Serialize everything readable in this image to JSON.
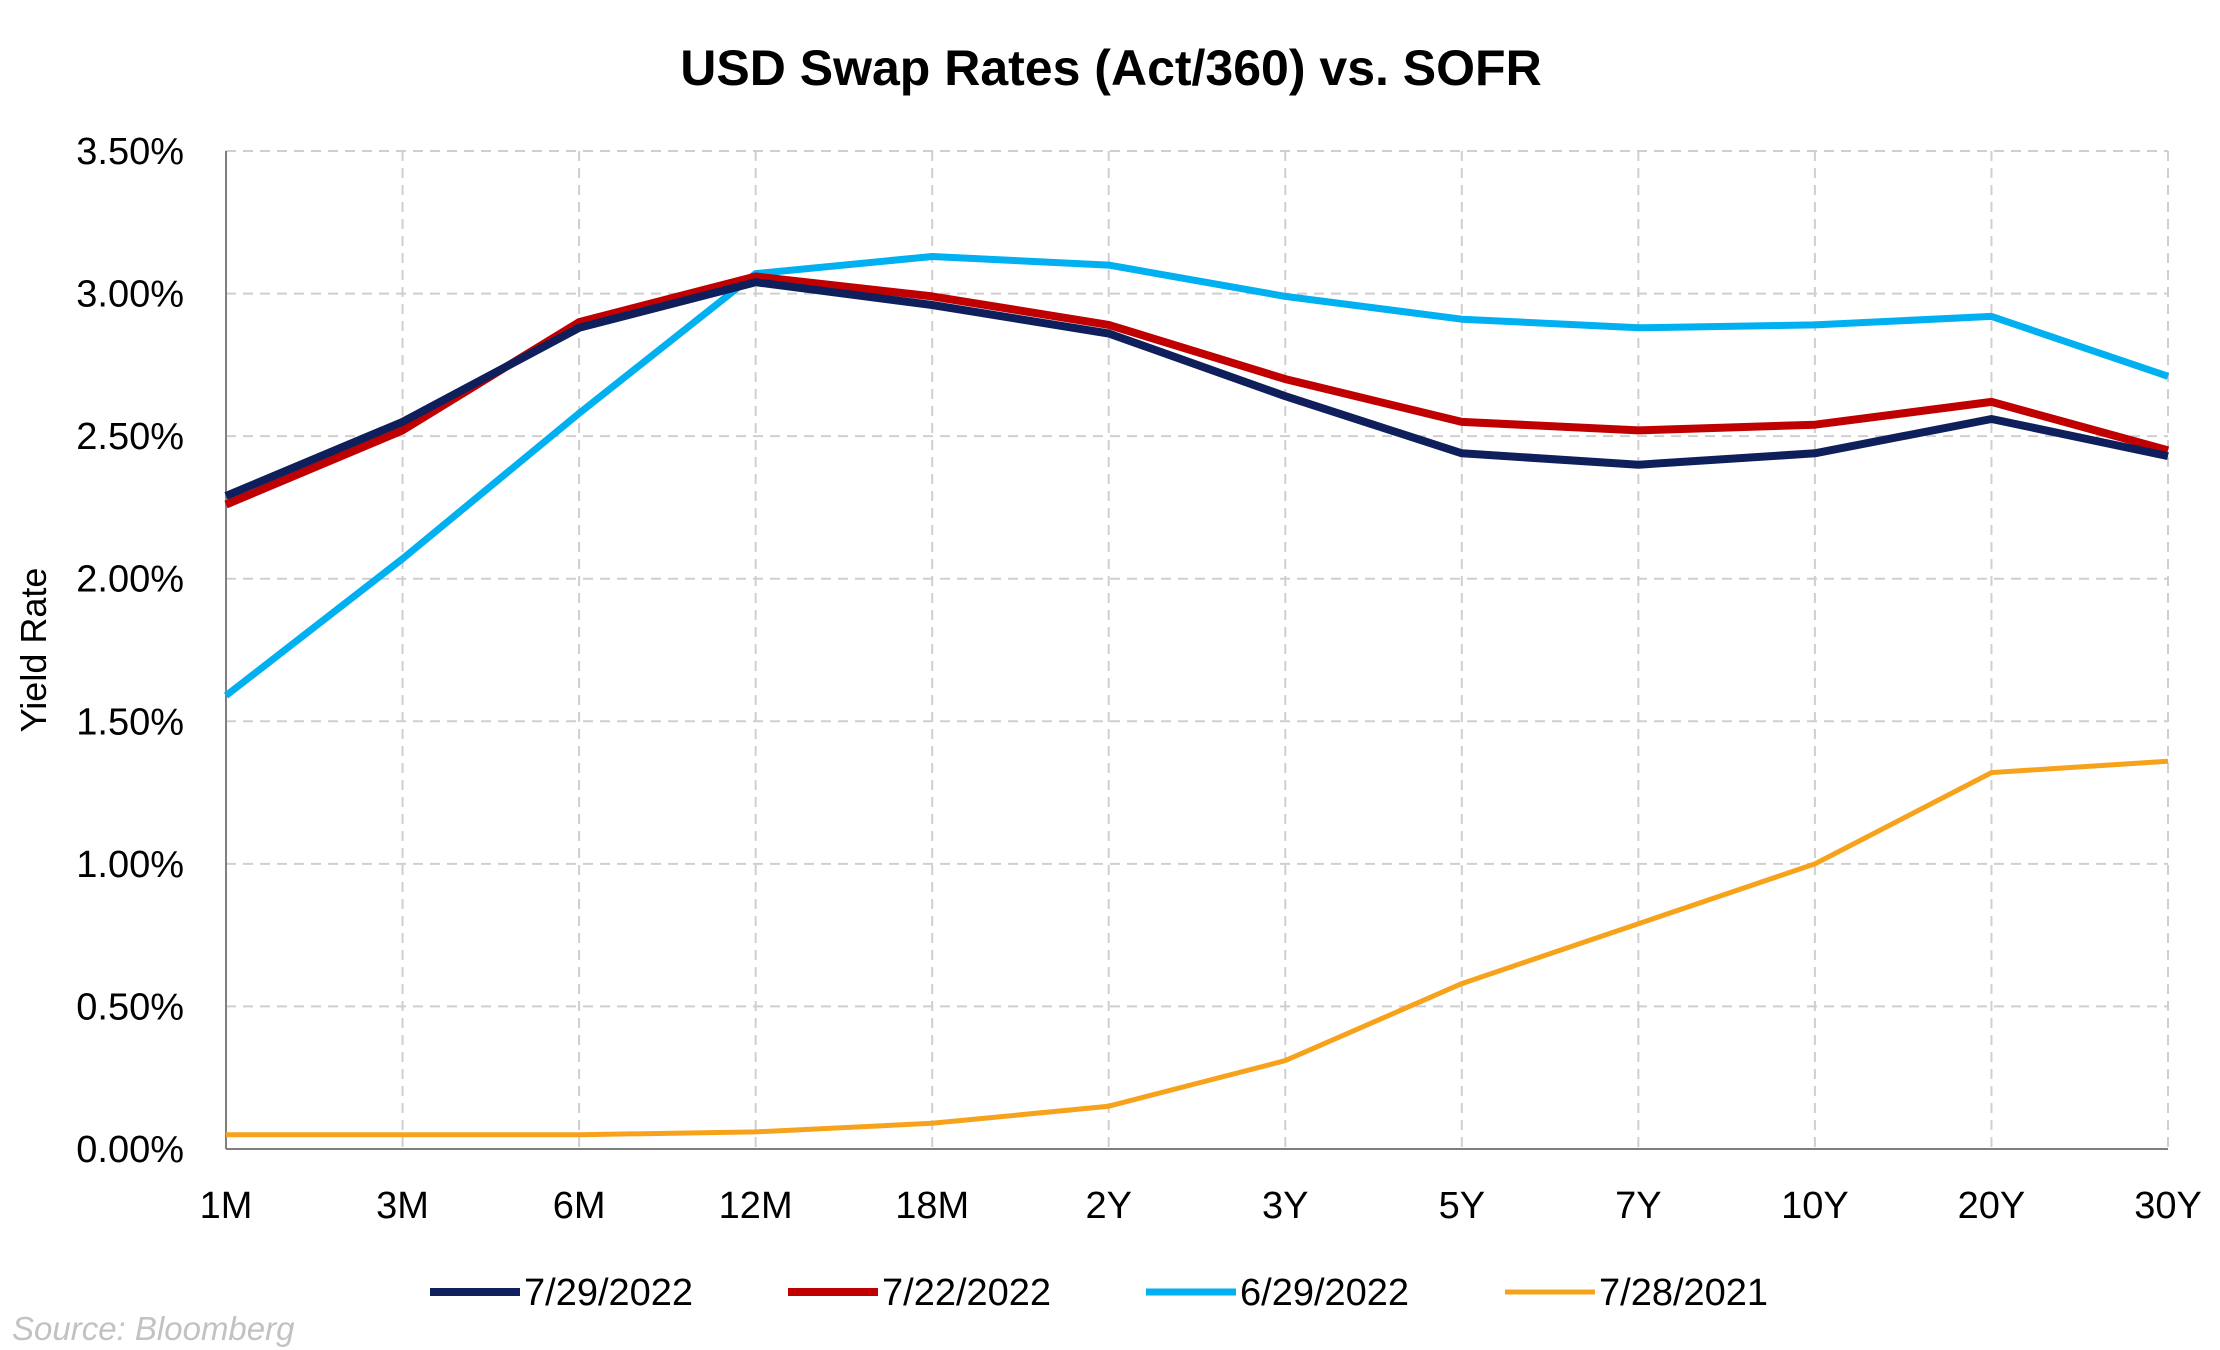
{
  "chart_data": {
    "type": "line",
    "title": "USD Swap Rates (Act/360) vs. SOFR",
    "ylabel": "Yield Rate",
    "xlabel": "",
    "categories": [
      "1M",
      "3M",
      "6M",
      "12M",
      "18M",
      "2Y",
      "3Y",
      "5Y",
      "7Y",
      "10Y",
      "20Y",
      "30Y"
    ],
    "ylim": [
      0,
      3.5
    ],
    "ytick_values": [
      0,
      0.5,
      1.0,
      1.5,
      2.0,
      2.5,
      3.0,
      3.5
    ],
    "ytick_labels": [
      "0.00%",
      "0.50%",
      "1.00%",
      "1.50%",
      "2.00%",
      "2.50%",
      "3.00%",
      "3.50%"
    ],
    "grid": true,
    "legend_position": "bottom",
    "series": [
      {
        "name": "7/29/2022",
        "color": "#0e1f5b",
        "values": [
          2.29,
          2.55,
          2.88,
          3.04,
          2.96,
          2.86,
          2.64,
          2.44,
          2.4,
          2.44,
          2.56,
          2.43
        ]
      },
      {
        "name": "7/22/2022",
        "color": "#c00000",
        "values": [
          2.26,
          2.52,
          2.9,
          3.06,
          2.99,
          2.89,
          2.7,
          2.55,
          2.52,
          2.54,
          2.62,
          2.45
        ]
      },
      {
        "name": "6/29/2022",
        "color": "#00b0f0",
        "values": [
          1.59,
          2.07,
          2.58,
          3.07,
          3.13,
          3.1,
          2.99,
          2.91,
          2.88,
          2.89,
          2.92,
          2.71
        ]
      },
      {
        "name": "7/28/2021",
        "color": "#f7a21b",
        "values": [
          0.05,
          0.05,
          0.05,
          0.06,
          0.09,
          0.15,
          0.31,
          0.58,
          0.79,
          1.0,
          1.32,
          1.36
        ]
      }
    ]
  },
  "source_note": "Source: Bloomberg"
}
